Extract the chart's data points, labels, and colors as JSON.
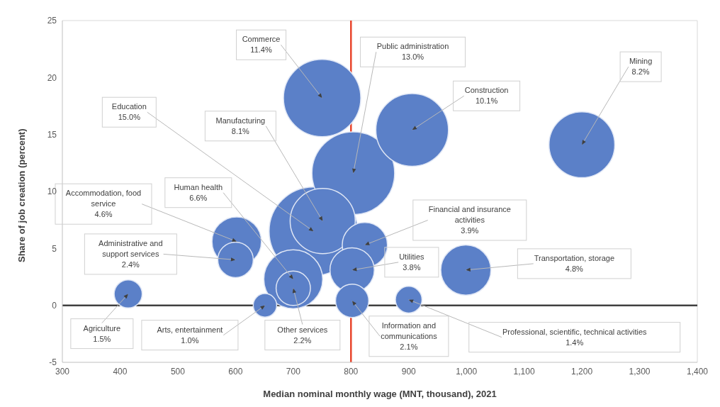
{
  "chart_data": {
    "type": "bubble",
    "xlabel": "Median nominal monthly wage (MNT, thousand), 2021",
    "ylabel": "Share of job creation (percent)",
    "series": [
      {
        "color": "#5b80c8",
        "x": [
          735,
          804,
          750,
          906,
          1200,
          751,
          700,
          999,
          602,
          824,
          802,
          600,
          700,
          802,
          414,
          900,
          651
        ],
        "values": [
          6.5,
          11.6,
          18.2,
          15.4,
          14.1,
          7.4,
          2.3,
          3.1,
          5.6,
          5.3,
          3.1,
          4.0,
          1.5,
          0.4,
          1.0,
          0.5,
          0.0
        ],
        "sizes": [
          1,
          0.87,
          0.76,
          0.67,
          0.55,
          0.54,
          0.44,
          0.32,
          0.31,
          0.26,
          0.25,
          0.16,
          0.15,
          0.14,
          0.1,
          0.09,
          0.07
        ]
      }
    ],
    "annotations": [
      {
        "text": "Education\n15.0%",
        "x": 735,
        "y": 6.5
      },
      {
        "text": "Public administration\n13.0%",
        "x": 804,
        "y": 11.6
      },
      {
        "text": "Commerce\n11.4%",
        "x": 750,
        "y": 18.2
      },
      {
        "text": "Construction\n10.1%",
        "x": 906,
        "y": 15.4
      },
      {
        "text": "Mining\n8.2%",
        "x": 1200,
        "y": 14.1
      },
      {
        "text": "Manufacturing\n8.1%",
        "x": 751,
        "y": 7.4
      },
      {
        "text": "Human health\n6.6%",
        "x": 700,
        "y": 2.3
      },
      {
        "text": "Transportation, storage\n4.8%",
        "x": 999,
        "y": 3.1
      },
      {
        "text": "Accommodation, food\nservice\n4.6%",
        "x": 602,
        "y": 5.6
      },
      {
        "text": "Financial and insurance\nactivities\n3.9%",
        "x": 824,
        "y": 5.3
      },
      {
        "text": "Utilities\n3.8%",
        "x": 802,
        "y": 3.1
      },
      {
        "text": "Administrative and\nsupport services\n2.4%",
        "x": 600,
        "y": 4.0
      },
      {
        "text": "Other services\n2.2%",
        "x": 700,
        "y": 1.5
      },
      {
        "text": "Information and\ncommunications\n2.1%",
        "x": 802,
        "y": 0.4
      },
      {
        "text": "Agriculture\n1.5%",
        "x": 414,
        "y": 1.0
      },
      {
        "text": "Professional, scientific, technical activities\n1.4%",
        "x": 900,
        "y": 0.5
      },
      {
        "text": "Arts, entertainment\n1.0%",
        "x": 651,
        "y": 0.0
      }
    ],
    "ref_lines": [
      {
        "axis": "x",
        "value": 800,
        "color": "#e8452c"
      },
      {
        "axis": "y",
        "value": 0,
        "color": "#404040"
      }
    ],
    "xlim": [
      300,
      1400
    ],
    "xticks": [
      300,
      400,
      500,
      600,
      700,
      800,
      900,
      {
        "value": 1000,
        "label": "1,000"
      },
      {
        "value": 1100,
        "label": "1,100"
      },
      {
        "value": 1200,
        "label": "1,200"
      },
      {
        "value": 1300,
        "label": "1,300"
      },
      {
        "value": 1400,
        "label": "1,400"
      }
    ],
    "ylim": [
      -5,
      25
    ],
    "yticks": [
      -5,
      0,
      5,
      10,
      15,
      20,
      25
    ],
    "grid": false,
    "legend": false
  }
}
